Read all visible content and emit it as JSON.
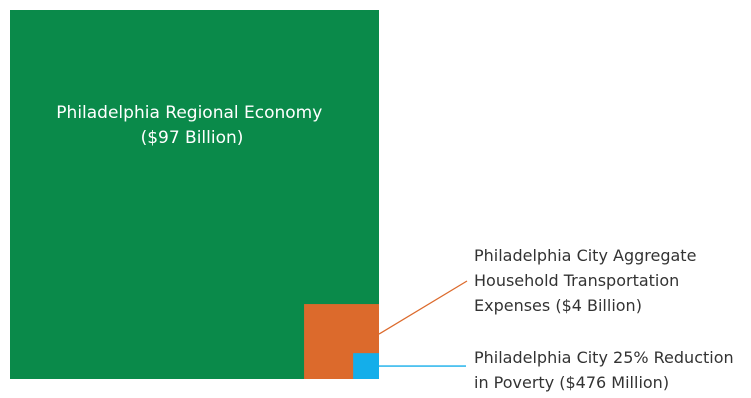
{
  "chart_data": {
    "type": "treemap",
    "items": [
      {
        "label_lines": [
          "Philadelphia Regional Economy",
          "($97 Billion)"
        ],
        "value": 97000000000,
        "color": "#0a8a4a"
      },
      {
        "label_lines": [
          "Philadelphia City Aggregate",
          "Household Transportation",
          "Expenses ($4 Billion)"
        ],
        "value": 4000000000,
        "color": "#dc6a2c"
      },
      {
        "label_lines": [
          "Philadelphia City 25% Reduction",
          "in Poverty ($476 Million)"
        ],
        "value": 476000000,
        "color": "#14aeea"
      }
    ]
  }
}
